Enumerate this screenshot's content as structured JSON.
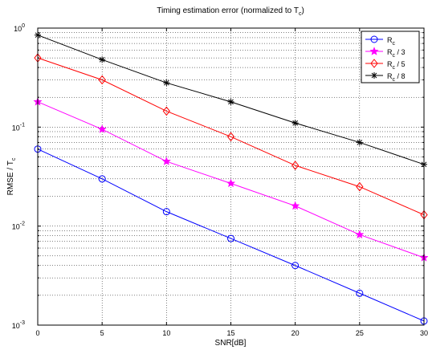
{
  "chart_data": {
    "type": "line",
    "title": {
      "base": "Timing estimation error (normalized to T",
      "sub": "c",
      "tail": ")"
    },
    "xlabel": "SNR[dB]",
    "ylabel": {
      "base": "RMSE / T",
      "sub": "c"
    },
    "x": [
      0,
      5,
      10,
      15,
      20,
      25,
      30
    ],
    "xlim": [
      0,
      30
    ],
    "ylim": [
      0.001,
      1
    ],
    "yscale": "log",
    "grid": true,
    "legend_position": "top-right",
    "x_ticks": [
      "0",
      "5",
      "10",
      "15",
      "20",
      "25",
      "30"
    ],
    "y_ticks": [
      {
        "base": "10",
        "exp": "0"
      },
      {
        "base": "10",
        "exp": "-1"
      },
      {
        "base": "10",
        "exp": "-2"
      },
      {
        "base": "10",
        "exp": "-3"
      }
    ],
    "series": [
      {
        "name": {
          "base": "R",
          "sub": "c",
          "tail": ""
        },
        "color": "#0000ff",
        "marker": "circle",
        "values": [
          0.06,
          0.03,
          0.014,
          0.0075,
          0.004,
          0.0021,
          0.0011
        ]
      },
      {
        "name": {
          "base": "R",
          "sub": "c",
          "tail": " / 3"
        },
        "color": "#ff00ff",
        "marker": "star",
        "values": [
          0.18,
          0.095,
          0.045,
          0.027,
          0.016,
          0.0082,
          0.0048
        ]
      },
      {
        "name": {
          "base": "R",
          "sub": "c",
          "tail": " / 5"
        },
        "color": "#ff0000",
        "marker": "diamond",
        "values": [
          0.5,
          0.3,
          0.145,
          0.08,
          0.041,
          0.025,
          0.013
        ]
      },
      {
        "name": {
          "base": "R",
          "sub": "c",
          "tail": " / 8"
        },
        "color": "#000000",
        "marker": "asterisk",
        "values": [
          0.85,
          0.48,
          0.28,
          0.18,
          0.11,
          0.07,
          0.042
        ]
      }
    ]
  }
}
